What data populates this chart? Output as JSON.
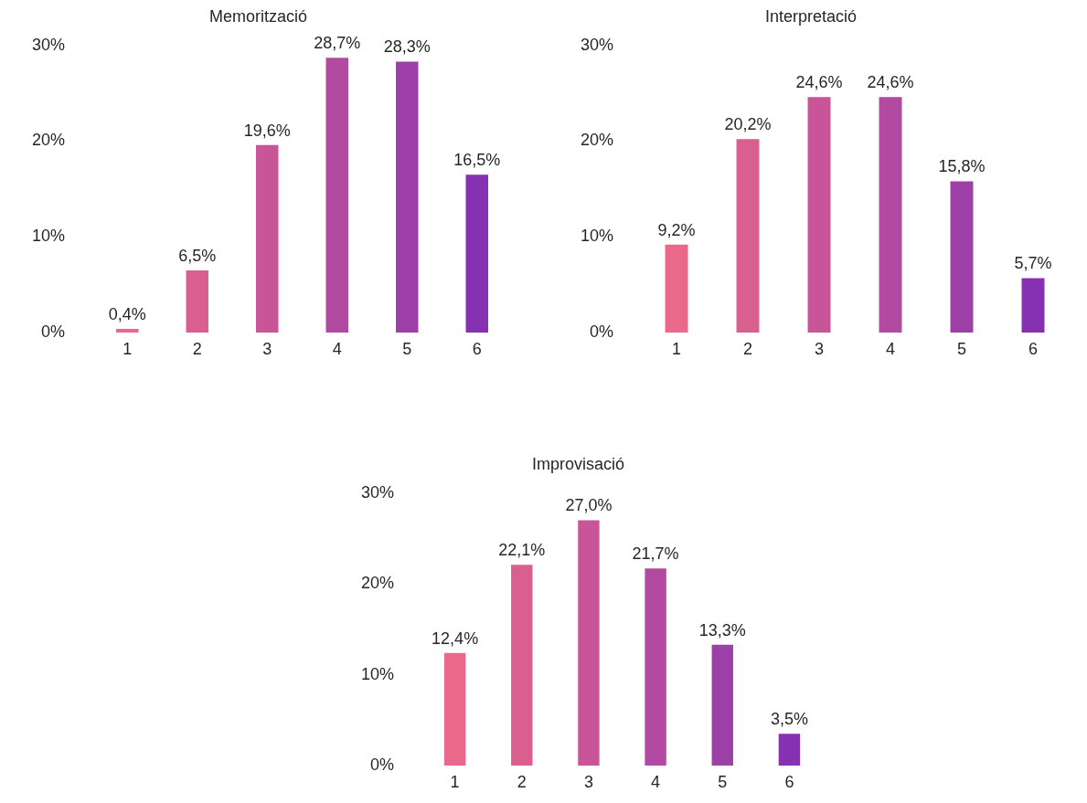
{
  "chart_data": [
    {
      "type": "bar",
      "title": "Memorització",
      "categories": [
        "1",
        "2",
        "3",
        "4",
        "5",
        "6"
      ],
      "values": [
        0.4,
        6.5,
        19.6,
        28.7,
        28.3,
        16.5
      ],
      "colors": [
        "#e8688a",
        "#d9608e",
        "#c85598",
        "#b14aa0",
        "#9c40a8",
        "#8531b2"
      ],
      "value_labels": [
        "0,4%",
        "6,5%",
        "19,6%",
        "28,7%",
        "28,3%",
        "16,5%"
      ],
      "ylim": [
        0,
        30
      ],
      "yticks": [
        {
          "value": 0,
          "label": "0%"
        },
        {
          "value": 10,
          "label": "10%"
        },
        {
          "value": 20,
          "label": "20%"
        },
        {
          "value": 30,
          "label": "30%"
        }
      ],
      "grid": false,
      "legend": false
    },
    {
      "type": "bar",
      "title": "Interpretació",
      "categories": [
        "1",
        "2",
        "3",
        "4",
        "5",
        "6"
      ],
      "values": [
        9.2,
        20.2,
        24.6,
        24.6,
        15.8,
        5.7
      ],
      "colors": [
        "#ea6889",
        "#d9608e",
        "#c85598",
        "#b14aa0",
        "#9c40a8",
        "#8531b2"
      ],
      "value_labels": [
        "9,2%",
        "20,2%",
        "24,6%",
        "24,6%",
        "15,8%",
        "5,7%"
      ],
      "ylim": [
        0,
        30
      ],
      "yticks": [
        {
          "value": 0,
          "label": "0%"
        },
        {
          "value": 10,
          "label": "10%"
        },
        {
          "value": 20,
          "label": "20%"
        },
        {
          "value": 30,
          "label": "30%"
        }
      ],
      "grid": false,
      "legend": false
    },
    {
      "type": "bar",
      "title": "Improvisació",
      "categories": [
        "1",
        "2",
        "3",
        "4",
        "5",
        "6"
      ],
      "values": [
        12.4,
        22.1,
        27.0,
        21.7,
        13.3,
        3.5
      ],
      "colors": [
        "#ea6889",
        "#d9608e",
        "#c85598",
        "#b14aa0",
        "#9c40a8",
        "#8531b2"
      ],
      "value_labels": [
        "12,4%",
        "22,1%",
        "27,0%",
        "21,7%",
        "13,3%",
        "3,5%"
      ],
      "ylim": [
        0,
        30
      ],
      "yticks": [
        {
          "value": 0,
          "label": "0%"
        },
        {
          "value": 10,
          "label": "10%"
        },
        {
          "value": 20,
          "label": "20%"
        },
        {
          "value": 30,
          "label": "30%"
        }
      ],
      "grid": false,
      "legend": false
    }
  ]
}
